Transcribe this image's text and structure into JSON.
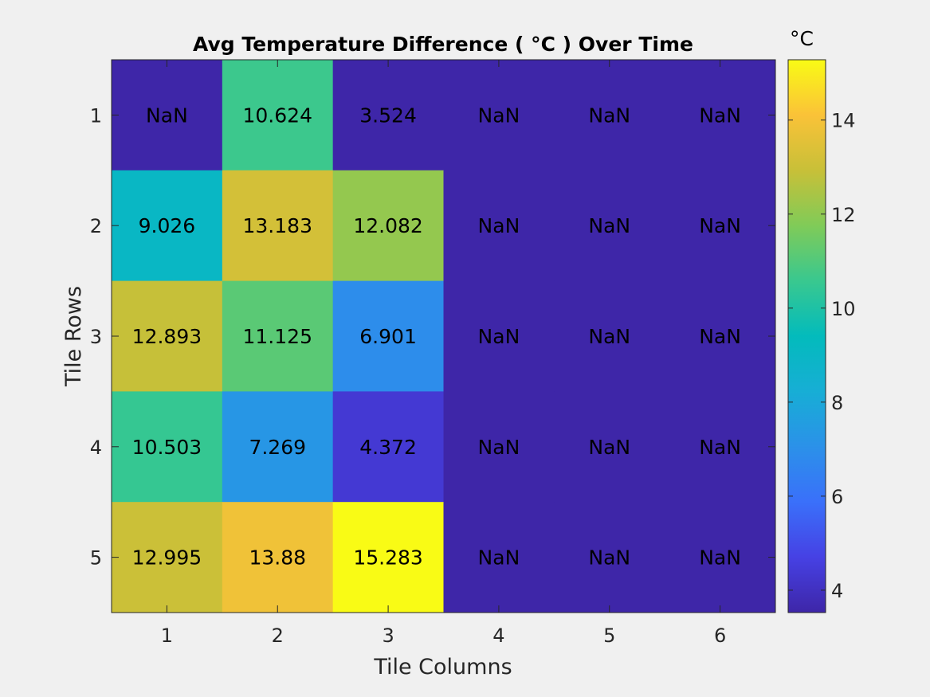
{
  "chart_data": {
    "type": "heatmap",
    "title": "Avg Temperature Difference ( °C ) Over Time",
    "xlabel": "Tile Columns",
    "ylabel": "Tile Rows",
    "x_ticks": [
      "1",
      "2",
      "3",
      "4",
      "5",
      "6"
    ],
    "y_ticks": [
      "1",
      "2",
      "3",
      "4",
      "5"
    ],
    "values": [
      [
        null,
        10.624,
        3.524,
        null,
        null,
        null
      ],
      [
        9.026,
        13.183,
        12.082,
        null,
        null,
        null
      ],
      [
        12.893,
        11.125,
        6.901,
        null,
        null,
        null
      ],
      [
        10.503,
        7.269,
        4.372,
        null,
        null,
        null
      ],
      [
        12.995,
        13.88,
        15.283,
        null,
        null,
        null
      ]
    ],
    "labels": [
      [
        "NaN",
        "10.624",
        "3.524",
        "NaN",
        "NaN",
        "NaN"
      ],
      [
        "9.026",
        "13.183",
        "12.082",
        "NaN",
        "NaN",
        "NaN"
      ],
      [
        "12.893",
        "11.125",
        "6.901",
        "NaN",
        "NaN",
        "NaN"
      ],
      [
        "10.503",
        "7.269",
        "4.372",
        "NaN",
        "NaN",
        "NaN"
      ],
      [
        "12.995",
        "13.88",
        "15.283",
        "NaN",
        "NaN",
        "NaN"
      ]
    ],
    "colorbar": {
      "label": "°C",
      "range": [
        3.524,
        15.283
      ],
      "ticks": [
        "4",
        "6",
        "8",
        "10",
        "12",
        "14"
      ],
      "colormap": "parula"
    },
    "nan_color": "#3e26a8",
    "grid": false,
    "legend": "none"
  }
}
